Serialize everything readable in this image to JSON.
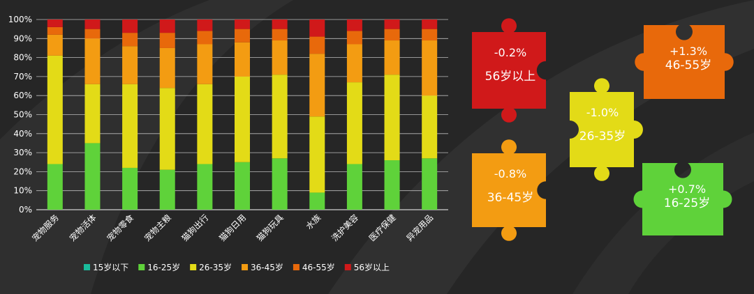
{
  "chart_data": {
    "type": "bar",
    "stacked": true,
    "normalized": true,
    "categories": [
      "宠物服务",
      "宠物活体",
      "宠物零食",
      "宠物主粮",
      "猫狗出行",
      "猫狗日用",
      "猫狗玩具",
      "水族",
      "洗护美容",
      "医疗保健",
      "异宠用品"
    ],
    "y_ticks": [
      "0%",
      "10%",
      "20%",
      "30%",
      "40%",
      "50%",
      "60%",
      "70%",
      "80%",
      "90%",
      "100%"
    ],
    "ylim": [
      0,
      100
    ],
    "grid": true,
    "legend_position": "bottom",
    "series": [
      {
        "name": "15岁以下",
        "color": "#1abc9c",
        "values": [
          0,
          0,
          0,
          0,
          0,
          0,
          0,
          0,
          0,
          0,
          0
        ]
      },
      {
        "name": "16-25岁",
        "color": "#5fd23a",
        "values": [
          24,
          35,
          22,
          21,
          24,
          25,
          27,
          9,
          24,
          26,
          27
        ]
      },
      {
        "name": "26-35岁",
        "color": "#e3db17",
        "values": [
          57,
          31,
          44,
          43,
          42,
          45,
          44,
          40,
          43,
          45,
          33
        ]
      },
      {
        "name": "36-45岁",
        "color": "#f39c12",
        "values": [
          11,
          24,
          20,
          21,
          21,
          18,
          18,
          33,
          20,
          18,
          29
        ]
      },
      {
        "name": "46-55岁",
        "color": "#e8690b",
        "values": [
          4,
          5,
          7,
          8,
          7,
          7,
          6,
          9,
          7,
          6,
          6
        ]
      },
      {
        "name": "56岁以上",
        "color": "#d0191a",
        "values": [
          4,
          5,
          7,
          7,
          6,
          5,
          5,
          9,
          6,
          5,
          5
        ]
      }
    ]
  },
  "puzzles": [
    {
      "id": "56",
      "value": "-0.2%",
      "group": "56岁以上",
      "color": "#d0191a"
    },
    {
      "id": "46",
      "value": "+1.3%",
      "group": "46-55岁",
      "color": "#e8690b"
    },
    {
      "id": "26",
      "value": "-1.0%",
      "group": "26-35岁",
      "color": "#e3db17"
    },
    {
      "id": "36",
      "value": "-0.8%",
      "group": "36-45岁",
      "color": "#f39c12"
    },
    {
      "id": "16",
      "value": "+0.7%",
      "group": "16-25岁",
      "color": "#5fd23a"
    }
  ]
}
